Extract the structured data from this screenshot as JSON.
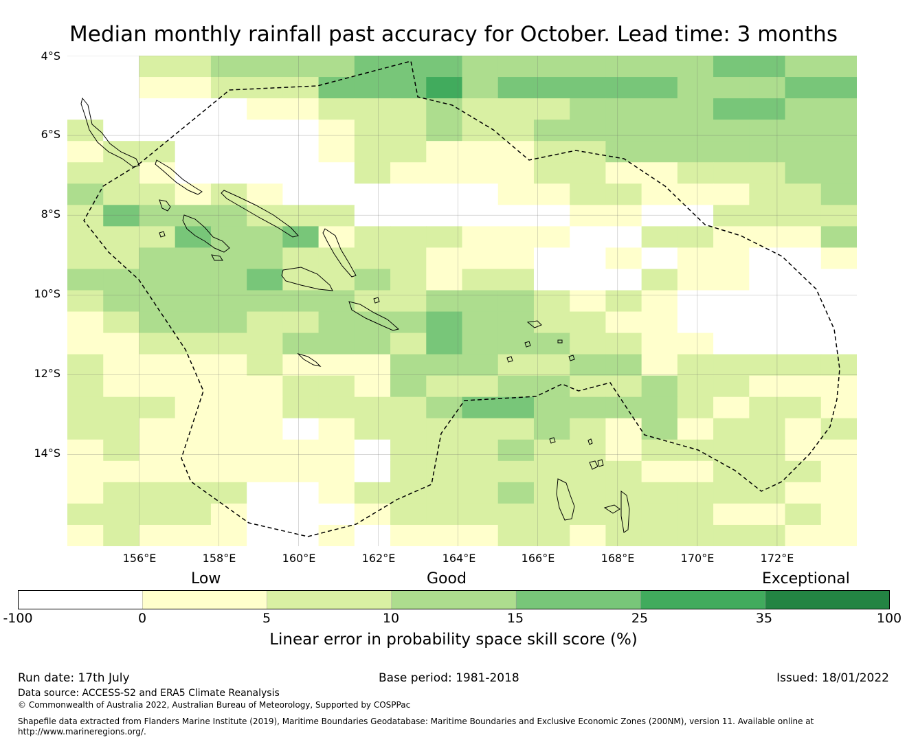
{
  "title": "Median monthly rainfall past accuracy for October. Lead time: 3 months",
  "lat_labels": [
    "4°S",
    "6°S",
    "8°S",
    "10°S",
    "12°S",
    "14°S"
  ],
  "lon_labels": [
    "156°E",
    "158°E",
    "160°E",
    "162°E",
    "164°E",
    "166°E",
    "168°E",
    "170°E",
    "172°E"
  ],
  "colorbar": {
    "categories": [
      "Low",
      "Good",
      "Exceptional"
    ],
    "ticks": [
      "-100",
      "0",
      "5",
      "10",
      "15",
      "25",
      "35",
      "100"
    ],
    "colors": [
      "#ffffff",
      "#ffffcc",
      "#d9f0a3",
      "#addd8e",
      "#78c679",
      "#41ab5d",
      "#238443"
    ],
    "label": "Linear error in probability space skill score (%)"
  },
  "footer": {
    "run_date": "Run date: 17th July",
    "base_period": "Base period: 1981-2018",
    "issued": "Issued: 18/01/2022",
    "data_source": "Data source: ACCESS-S2 and ERA5 Climate Reanalysis",
    "copyright": "© Commonwealth of Australia 2022, Australian Bureau of Meteorology, Supported by COSPPac",
    "shapefile_line1": "Shapefile data extracted from Flanders Marine Institute (2019), Maritime Boundaries Geodatabase: Maritime Boundaries and Exclusive Economic Zones (200NM), version 11. Available online at",
    "shapefile_line2": "http://www.marineregions.org/."
  },
  "map": {
    "lon_range": [
      154.2,
      174.0
    ],
    "lat_range": [
      -16.3,
      -4.0
    ],
    "grid_rows": [
      "0022333344433333334433",
      "0011222444534444433344",
      "0000011222322233334433",
      "2000000122322333333333",
      "1220000122111223333333",
      "2210000021111221122233",
      "3221210000001122111223",
      "2433322200000011002222",
      "2224334122211100221113",
      "2233332222111001011001",
      "3333342232122000211000",
      "2333333322333212100000",
      "1233322333433221100000",
      "1122223332433322110000",
      "2111121113332233122222",
      "2111112213223322322111",
      "2221112222344333321221",
      "2211110122222321312212",
      "1211111102223221222211",
      "1111111102222222112221",
      "1222200122223222222211",
      "2222100012222222221121",
      "1211100101112212222211"
    ]
  }
}
